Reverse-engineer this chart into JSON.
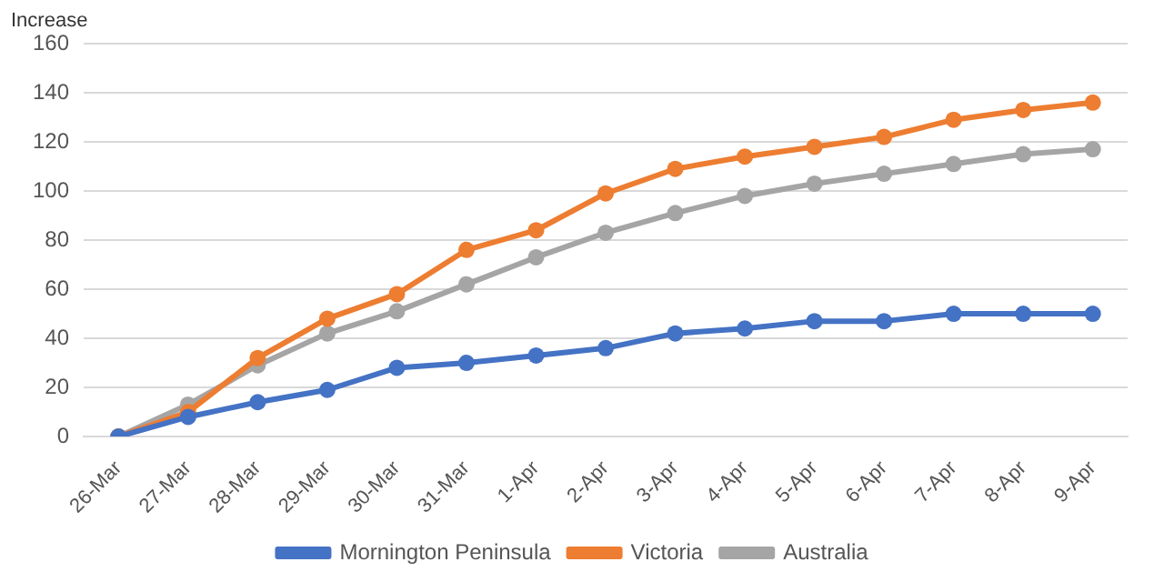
{
  "chart_data": {
    "type": "line",
    "ylabel": "Increase",
    "categories": [
      "26-Mar",
      "27-Mar",
      "28-Mar",
      "29-Mar",
      "30-Mar",
      "31-Mar",
      "1-Apr",
      "2-Apr",
      "3-Apr",
      "4-Apr",
      "5-Apr",
      "6-Apr",
      "7-Apr",
      "8-Apr",
      "9-Apr"
    ],
    "series": [
      {
        "name": "Mornington Peninsula",
        "color": "#4472c4",
        "values": [
          0,
          8,
          14,
          19,
          28,
          30,
          33,
          36,
          42,
          44,
          47,
          47,
          50,
          50,
          50
        ]
      },
      {
        "name": "Victoria",
        "color": "#ed7d31",
        "values": [
          0,
          10,
          32,
          48,
          58,
          76,
          84,
          99,
          109,
          114,
          118,
          122,
          129,
          133,
          136
        ]
      },
      {
        "name": "Australia",
        "color": "#a5a5a5",
        "values": [
          0,
          13,
          29,
          42,
          51,
          62,
          73,
          83,
          91,
          98,
          103,
          107,
          111,
          115,
          117
        ]
      }
    ],
    "ylim": [
      0,
      160
    ],
    "yticks": [
      0,
      20,
      40,
      60,
      80,
      100,
      120,
      140,
      160
    ],
    "grid": "y",
    "legend": "bottom",
    "marker": "circle",
    "line_style": "solid"
  }
}
